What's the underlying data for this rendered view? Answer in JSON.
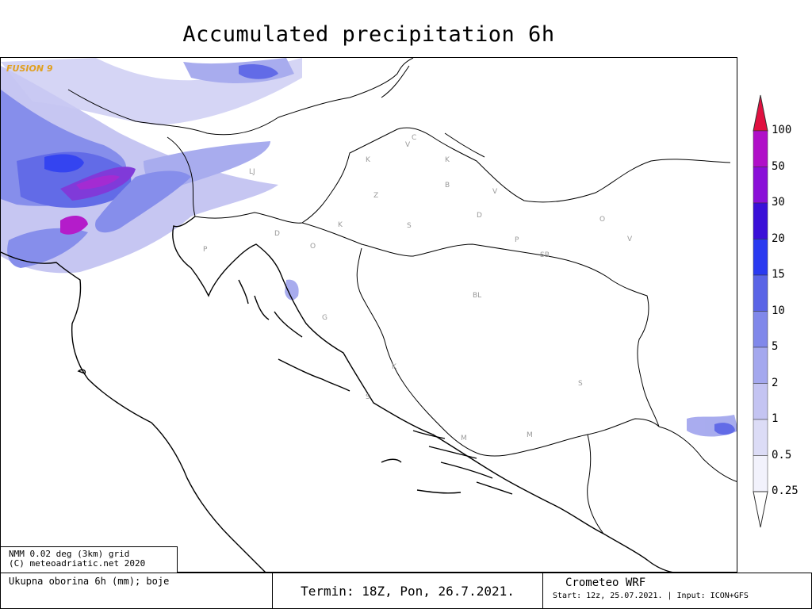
{
  "title": "Accumulated precipitation 6h",
  "watermark": "FUSION 9",
  "legend": {
    "levels": [
      "0.25",
      "0.5",
      "1",
      "2",
      "5",
      "10",
      "15",
      "20",
      "30",
      "50",
      "100"
    ],
    "colors": [
      "#f2f2fc",
      "#dcdcf6",
      "#c4c4f2",
      "#a4a8ee",
      "#8088ea",
      "#5a64e6",
      "#2a3af0",
      "#3a10d8",
      "#8a10d8",
      "#b010c8",
      "#e01040"
    ]
  },
  "credits": {
    "line1": "NMM 0.02 deg (3km) grid",
    "line2": "(C) meteoadriatic.net 2020"
  },
  "description": "Ukupna oborina 6h (mm); boje",
  "termin": "Termin: 18Z, Pon, 26.7.2021.",
  "model": {
    "name": "Crometeo WRF",
    "start": "Start: 12z, 25.07.2021. | Input: ICON+GFS"
  },
  "city_labels": [
    "C",
    "V",
    "K",
    "K",
    "LJ",
    "B",
    "V",
    "Z",
    "D",
    "K",
    "S",
    "D",
    "P",
    "P",
    "O",
    "SB",
    "O",
    "V",
    "BL",
    "G",
    "K",
    "S",
    "S",
    "M",
    "M"
  ]
}
